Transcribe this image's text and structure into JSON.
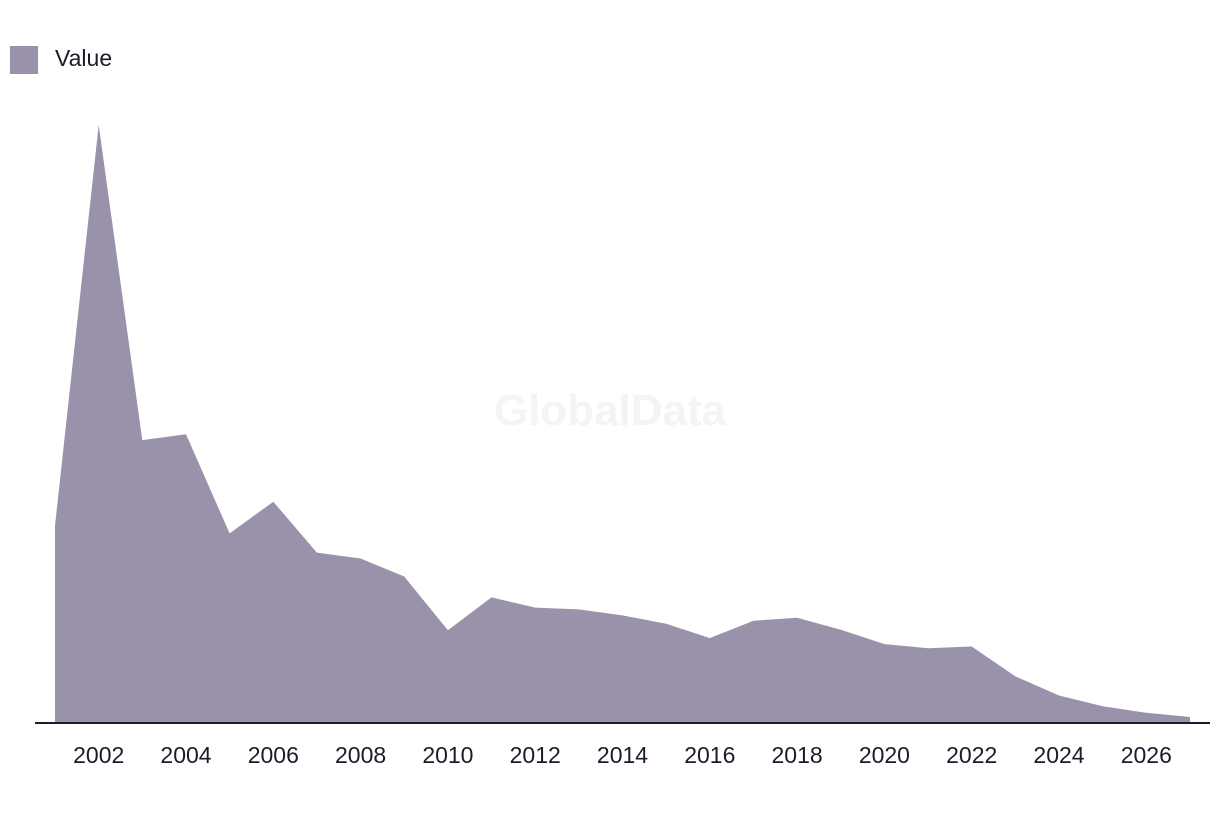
{
  "watermark": "GlobalData",
  "colors": {
    "area": "#9a91aa",
    "axis": "#1d1b2b",
    "text": "#1d1b2b"
  },
  "chart_data": {
    "type": "area",
    "title": "",
    "xlabel": "",
    "ylabel": "",
    "legend": {
      "position": "top-left",
      "entries": [
        "Value"
      ]
    },
    "grid": false,
    "x": [
      2001,
      2002,
      2003,
      2004,
      2005,
      2006,
      2007,
      2008,
      2009,
      2010,
      2011,
      2012,
      2013,
      2014,
      2015,
      2016,
      2017,
      2018,
      2019,
      2020,
      2021,
      2022,
      2023,
      2024,
      2025,
      2026,
      2027
    ],
    "xticks": [
      "2002",
      "2004",
      "2006",
      "2008",
      "2010",
      "2012",
      "2014",
      "2016",
      "2018",
      "2020",
      "2022",
      "2024",
      "2026"
    ],
    "xlim": [
      2001,
      2027
    ],
    "ylim": [
      0,
      100
    ],
    "series": [
      {
        "name": "Value",
        "values": [
          33,
          100,
          47.3,
          48.3,
          31.7,
          37,
          28.5,
          27.5,
          24.5,
          15.5,
          21,
          19.3,
          19,
          18,
          16.6,
          14.2,
          17.1,
          17.6,
          15.6,
          13.2,
          12.5,
          12.8,
          7.8,
          4.6,
          2.8,
          1.7,
          1
        ]
      }
    ]
  }
}
